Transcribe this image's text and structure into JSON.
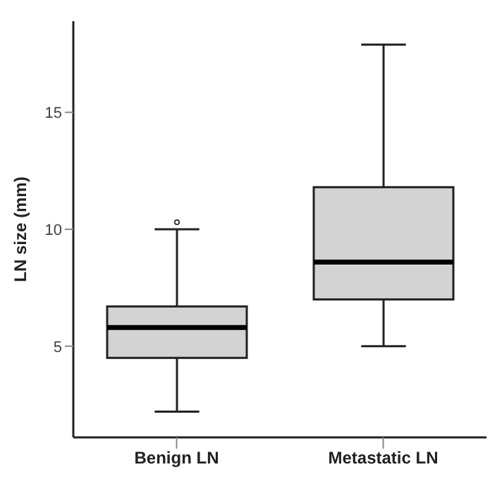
{
  "chart_data": {
    "type": "box",
    "ylabel": "LN size (mm)",
    "categories": [
      "Benign LN",
      "Metastatic LN"
    ],
    "boxes": [
      {
        "low": 2.2,
        "q1": 4.5,
        "median": 5.8,
        "q3": 6.7,
        "high": 10,
        "outliers": [
          10.3
        ]
      },
      {
        "low": 5,
        "q1": 7,
        "median": 8.6,
        "q3": 11.8,
        "high": 17.9
      }
    ],
    "color": "#d3d3d3",
    "ylim": [
      1.1,
      18.9
    ],
    "yticks": [
      5,
      10,
      15
    ],
    "grid": false
  }
}
